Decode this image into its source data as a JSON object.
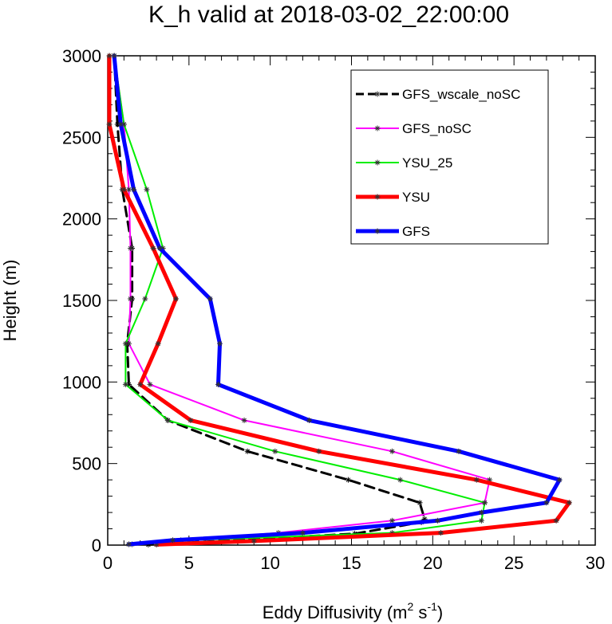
{
  "chart_data": {
    "type": "line",
    "title": "K_h valid at 2018-03-02_22:00:00",
    "xlabel": "Eddy Diffusivity (m",
    "xlabel_sup1": "2",
    "xlabel_mid": " s",
    "xlabel_sup2": "-1",
    "xlabel_end": ")",
    "ylabel": "Height (m)",
    "xlim": [
      0,
      30
    ],
    "ylim": [
      0,
      3000
    ],
    "xticks": [
      0,
      5,
      10,
      15,
      20,
      25,
      30
    ],
    "yticks": [
      0,
      500,
      1000,
      1500,
      2000,
      2500,
      3000
    ],
    "legend_position": "top-right",
    "grid": false,
    "series": [
      {
        "name": "GFS_wscale_noSC",
        "color": "#000000",
        "dash": "dashed",
        "width": 3,
        "points": [
          [
            0.4,
            3000
          ],
          [
            0.6,
            2580
          ],
          [
            0.9,
            2180
          ],
          [
            1.5,
            1820
          ],
          [
            1.5,
            1510
          ],
          [
            1.2,
            1235
          ],
          [
            1.3,
            985
          ],
          [
            3.7,
            765
          ],
          [
            8.6,
            575
          ],
          [
            14.8,
            400
          ],
          [
            19.2,
            260
          ],
          [
            19.5,
            160
          ],
          [
            19.3,
            140
          ],
          [
            15.2,
            70
          ],
          [
            5.5,
            18
          ],
          [
            2.5,
            3
          ]
        ]
      },
      {
        "name": "GFS_noSC",
        "color": "#ff00ff",
        "dash": "solid",
        "width": 2,
        "points": [
          [
            0.4,
            3000
          ],
          [
            1.0,
            2580
          ],
          [
            1.3,
            2180
          ],
          [
            1.4,
            1820
          ],
          [
            1.4,
            1510
          ],
          [
            1.3,
            1235
          ],
          [
            2.6,
            985
          ],
          [
            8.4,
            765
          ],
          [
            17.5,
            575
          ],
          [
            23.5,
            400
          ],
          [
            23.2,
            260
          ],
          [
            17.5,
            150
          ],
          [
            10.5,
            75
          ],
          [
            4.5,
            30
          ],
          [
            1.5,
            5
          ]
        ]
      },
      {
        "name": "YSU_25",
        "color": "#00ee00",
        "dash": "solid",
        "width": 2,
        "points": [
          [
            0.4,
            3000
          ],
          [
            1.0,
            2580
          ],
          [
            2.4,
            2180
          ],
          [
            3.4,
            1820
          ],
          [
            2.3,
            1510
          ],
          [
            1.1,
            1235
          ],
          [
            1.1,
            985
          ],
          [
            3.7,
            765
          ],
          [
            10.3,
            575
          ],
          [
            18.0,
            400
          ],
          [
            23.2,
            260
          ],
          [
            23.0,
            150
          ],
          [
            17.5,
            75
          ],
          [
            5.0,
            30
          ],
          [
            1.3,
            5
          ]
        ]
      },
      {
        "name": "YSU",
        "color": "#ff0000",
        "dash": "solid",
        "width": 5,
        "points": [
          [
            0.1,
            3000
          ],
          [
            0.1,
            2580
          ],
          [
            1.0,
            2180
          ],
          [
            2.8,
            1820
          ],
          [
            4.2,
            1510
          ],
          [
            3.1,
            1235
          ],
          [
            2.0,
            985
          ],
          [
            5.1,
            765
          ],
          [
            13.0,
            575
          ],
          [
            22.7,
            400
          ],
          [
            28.4,
            260
          ],
          [
            27.6,
            150
          ],
          [
            20.5,
            75
          ],
          [
            9.0,
            25
          ],
          [
            3.0,
            3
          ]
        ]
      },
      {
        "name": "GFS",
        "color": "#0000ff",
        "dash": "solid",
        "width": 5,
        "points": [
          [
            0.4,
            3000
          ],
          [
            0.8,
            2580
          ],
          [
            1.6,
            2180
          ],
          [
            3.2,
            1820
          ],
          [
            6.3,
            1510
          ],
          [
            6.9,
            1235
          ],
          [
            6.8,
            985
          ],
          [
            12.4,
            765
          ],
          [
            21.6,
            575
          ],
          [
            27.8,
            400
          ],
          [
            27.0,
            260
          ],
          [
            23.0,
            200
          ],
          [
            20.3,
            150
          ],
          [
            12.0,
            75
          ],
          [
            4.0,
            30
          ],
          [
            1.3,
            5
          ]
        ]
      }
    ]
  }
}
